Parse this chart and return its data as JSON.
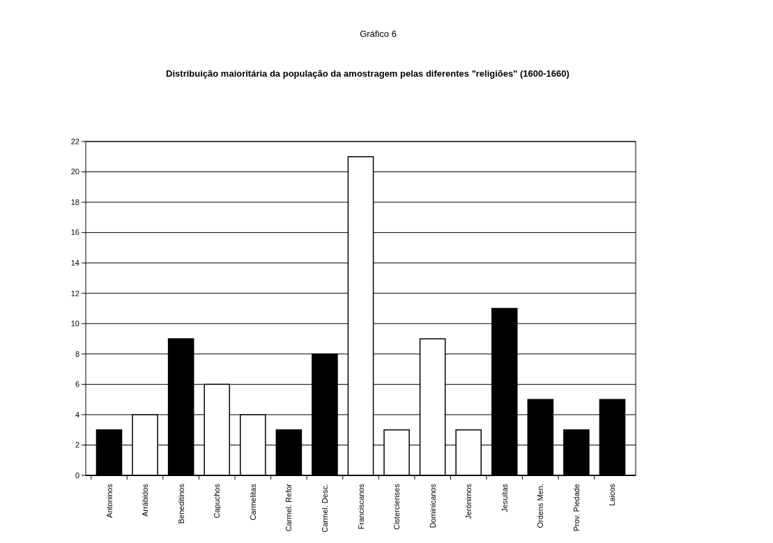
{
  "chart_data": {
    "type": "bar",
    "title": "Gráfico 6",
    "subtitle": "Distribuição maioritária da população da amostragem pelas diferentes \"religiões\" (1600-1660)",
    "categories": [
      "Antoninos",
      "Arrábidos",
      "Beneditinos",
      "Capuchos",
      "Carmelitas",
      "Carmel. Refor",
      "Carmel. Desc.",
      "Franciscanos",
      "Cistercienses",
      "Dominicanos",
      "Jerónimos",
      "Jesuítas",
      "Ordens Men.",
      "Prov. Piedade",
      "Laicos"
    ],
    "values": [
      3,
      4,
      9,
      6,
      4,
      3,
      8,
      21,
      3,
      9,
      3,
      11,
      5,
      3,
      5
    ],
    "colors": [
      "#000000",
      "#ffffff",
      "#000000",
      "#ffffff",
      "#ffffff",
      "#000000",
      "#000000",
      "#ffffff",
      "#ffffff",
      "#ffffff",
      "#ffffff",
      "#000000",
      "#000000",
      "#000000",
      "#000000"
    ],
    "ylim": [
      0,
      22
    ],
    "yticks": [
      0,
      2,
      4,
      6,
      8,
      10,
      12,
      14,
      16,
      18,
      20,
      22
    ],
    "grid": "y"
  }
}
